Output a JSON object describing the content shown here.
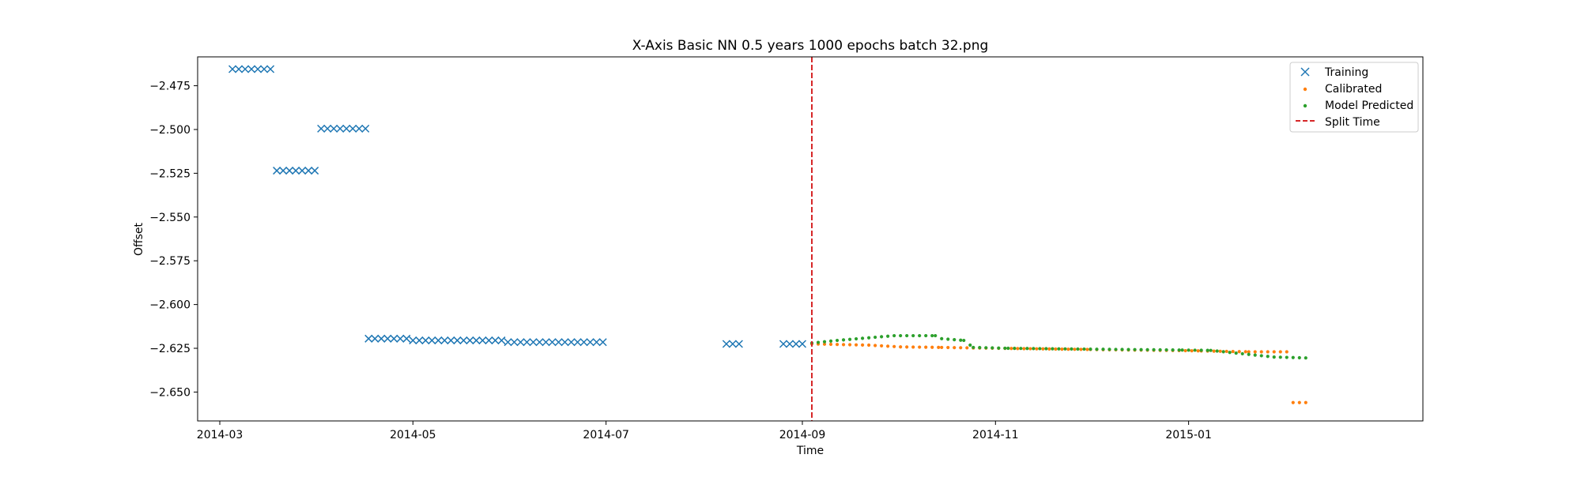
{
  "chart_data": {
    "type": "scatter",
    "title": "X-Axis Basic NN 0.5 years 1000 epochs batch 32.png",
    "xlabel": "Time",
    "ylabel": "Offset",
    "xlim": [
      "2014-02-22",
      "2015-03-16"
    ],
    "ylim": [
      -2.6665,
      -2.4585
    ],
    "x_ticks": [
      "2014-03",
      "2014-05",
      "2014-07",
      "2014-09",
      "2014-11",
      "2015-01"
    ],
    "y_ticks": [
      -2.475,
      -2.5,
      -2.525,
      -2.55,
      -2.575,
      -2.6,
      -2.625,
      -2.65
    ],
    "y_tick_labels": [
      "−2.475",
      "−2.500",
      "−2.525",
      "−2.550",
      "−2.575",
      "−2.600",
      "−2.625",
      "−2.650"
    ],
    "grid": false,
    "legend_position": "top-right",
    "colors": {
      "training": "#1f77b4",
      "calibrated": "#ff7f0e",
      "predicted": "#2ca02c",
      "split": "#d62728"
    },
    "split_time": "2014-09-04",
    "series": [
      {
        "name": "Training",
        "marker": "x",
        "segments": [
          {
            "start": "2014-03-05",
            "step_days": 2,
            "count": 7,
            "y": -2.4655
          },
          {
            "start": "2014-03-19",
            "step_days": 2,
            "count": 7,
            "y": -2.5235
          },
          {
            "start": "2014-04-02",
            "step_days": 2,
            "count": 8,
            "y": -2.4995
          },
          {
            "start": "2014-04-17",
            "step_days": 2,
            "count": 7,
            "y": -2.6195
          },
          {
            "start": "2014-05-01",
            "step_days": 2,
            "count": 15,
            "y": -2.6205
          },
          {
            "start": "2014-05-31",
            "step_days": 2,
            "count": 16,
            "y": -2.6215
          },
          {
            "start": "2014-08-08",
            "step_days": 2,
            "count": 3,
            "y": -2.6225
          },
          {
            "start": "2014-08-26",
            "step_days": 2,
            "count": 4,
            "y": -2.6225
          }
        ]
      },
      {
        "name": "Calibrated",
        "marker": "dot",
        "points": [
          [
            "2014-09-04",
            -2.6225
          ],
          [
            "2014-09-22",
            -2.6232
          ],
          [
            "2014-10-02",
            -2.6242
          ],
          [
            "2014-10-15",
            -2.6245
          ],
          [
            "2014-10-25",
            -2.6248
          ],
          [
            "2014-11-10",
            -2.6252
          ],
          [
            "2014-12-01",
            -2.6257
          ],
          [
            "2014-12-25",
            -2.6262
          ],
          [
            "2015-01-05",
            -2.6265
          ],
          [
            "2015-01-20",
            -2.627
          ],
          [
            "2015-02-02",
            -2.627
          ]
        ],
        "extra_points": [
          [
            "2015-02-03",
            -2.656
          ],
          [
            "2015-02-07",
            -2.656
          ]
        ],
        "step_days": 2
      },
      {
        "name": "Model Predicted",
        "marker": "dot",
        "points": [
          [
            "2014-09-04",
            -2.622
          ],
          [
            "2014-09-12",
            -2.6205
          ],
          [
            "2014-09-22",
            -2.619
          ],
          [
            "2014-09-30",
            -2.6178
          ],
          [
            "2014-10-13",
            -2.6178
          ],
          [
            "2014-10-15",
            -2.6195
          ],
          [
            "2014-10-22",
            -2.6205
          ],
          [
            "2014-10-25",
            -2.6245
          ],
          [
            "2014-11-05",
            -2.625
          ],
          [
            "2014-12-01",
            -2.6255
          ],
          [
            "2014-12-30",
            -2.626
          ],
          [
            "2015-01-08",
            -2.6262
          ],
          [
            "2015-01-20",
            -2.6285
          ],
          [
            "2015-01-28",
            -2.63
          ],
          [
            "2015-02-07",
            -2.6305
          ]
        ],
        "step_days": 2
      },
      {
        "name": "Split Time",
        "marker": "dashed-line",
        "x": "2014-09-04"
      }
    ]
  }
}
